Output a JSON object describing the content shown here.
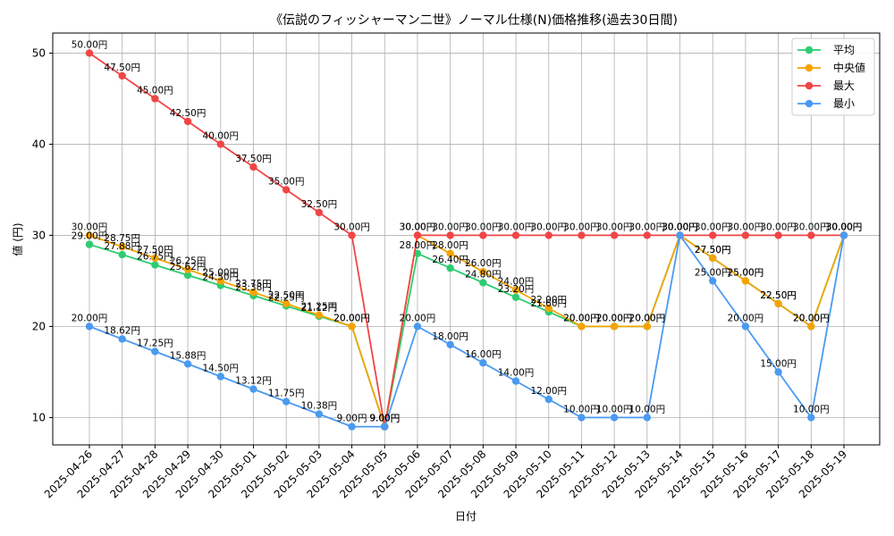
{
  "chart_data": {
    "type": "line",
    "title": "《伝説のフィッシャーマン二世》ノーマル仕様(N)価格推移(過去30日間)",
    "xlabel": "日付",
    "ylabel": "値 (円)",
    "ylim": [
      7,
      52.2
    ],
    "yticks": [
      10,
      20,
      30,
      40,
      50
    ],
    "grid": true,
    "legend_position": "top-right",
    "label_suffix": "円",
    "categories": [
      "2025-04-26",
      "2025-04-27",
      "2025-04-28",
      "2025-04-29",
      "2025-04-30",
      "2025-05-01",
      "2025-05-02",
      "2025-05-03",
      "2025-05-04",
      "2025-05-05",
      "2025-05-06",
      "2025-05-07",
      "2025-05-08",
      "2025-05-09",
      "2025-05-10",
      "2025-05-11",
      "2025-05-12",
      "2025-05-13",
      "2025-05-14",
      "2025-05-15",
      "2025-05-16",
      "2025-05-17",
      "2025-05-18",
      "2025-05-19"
    ],
    "series": [
      {
        "name": "平均",
        "color": "#2ecc71",
        "values": [
          29.0,
          27.88,
          26.75,
          25.62,
          24.5,
          23.38,
          22.25,
          21.12,
          20.0,
          9.0,
          28.0,
          26.4,
          24.8,
          23.2,
          21.6,
          20.0,
          20.0,
          20.0,
          30.0,
          27.5,
          25.0,
          22.5,
          20.0,
          30.0
        ]
      },
      {
        "name": "中央値",
        "color": "#f5a300",
        "values": [
          30.0,
          28.75,
          27.5,
          26.25,
          25.0,
          23.75,
          22.5,
          21.25,
          20.0,
          9.0,
          30.0,
          28.0,
          26.0,
          24.0,
          22.0,
          20.0,
          20.0,
          20.0,
          30.0,
          27.5,
          25.0,
          22.5,
          20.0,
          30.0
        ]
      },
      {
        "name": "最大",
        "color": "#f04545",
        "values": [
          50.0,
          47.5,
          45.0,
          42.5,
          40.0,
          37.5,
          35.0,
          32.5,
          30.0,
          9.0,
          30.0,
          30.0,
          30.0,
          30.0,
          30.0,
          30.0,
          30.0,
          30.0,
          30.0,
          30.0,
          30.0,
          30.0,
          30.0,
          30.0
        ]
      },
      {
        "name": "最小",
        "color": "#4a9af0",
        "values": [
          20.0,
          18.62,
          17.25,
          15.88,
          14.5,
          13.12,
          11.75,
          10.38,
          9.0,
          9.0,
          20.0,
          18.0,
          16.0,
          14.0,
          12.0,
          10.0,
          10.0,
          10.0,
          30.0,
          25.0,
          20.0,
          15.0,
          10.0,
          30.0
        ]
      }
    ]
  }
}
